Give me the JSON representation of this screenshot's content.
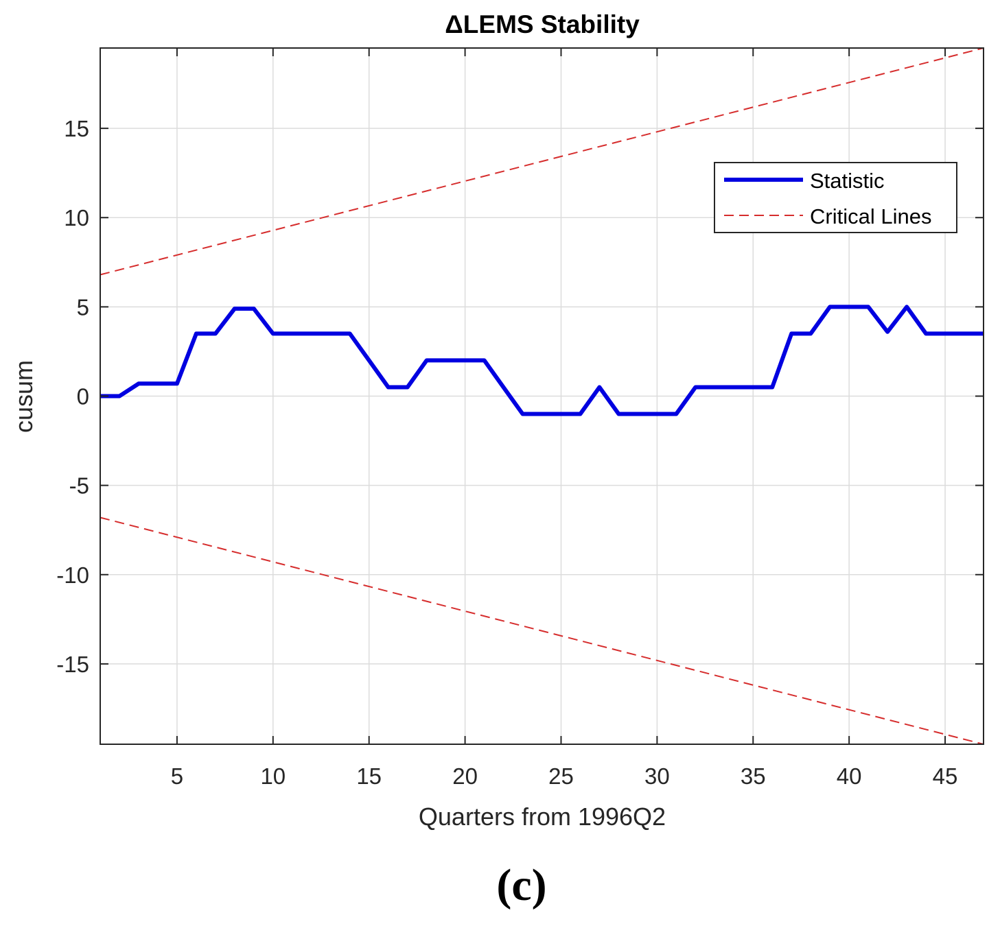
{
  "chart_data": {
    "type": "line",
    "title": "ΔLEMS Stability",
    "xlabel": "Quarters from 1996Q2",
    "ylabel": "cusum",
    "xlim": [
      1,
      47
    ],
    "ylim": [
      -19.5,
      19.5
    ],
    "xticks": [
      5,
      10,
      15,
      20,
      25,
      30,
      35,
      40,
      45
    ],
    "yticks": [
      -15,
      -10,
      -5,
      0,
      5,
      10,
      15
    ],
    "grid": true,
    "legend_position": "top-right",
    "colors": {
      "statistic": "#0000e0",
      "critical": "#d62d2d",
      "grid": "#dcdcdc",
      "axis": "#262626"
    },
    "series": [
      {
        "name": "Statistic",
        "style": "solid",
        "x": [
          1,
          2,
          3,
          4,
          5,
          6,
          7,
          8,
          9,
          10,
          11,
          12,
          13,
          14,
          15,
          16,
          17,
          18,
          19,
          20,
          21,
          22,
          23,
          24,
          25,
          26,
          27,
          28,
          29,
          30,
          31,
          32,
          33,
          34,
          35,
          36,
          37,
          38,
          39,
          40,
          41,
          42,
          43,
          44,
          45,
          46,
          47
        ],
        "values": [
          0,
          0,
          0.7,
          0.7,
          0.7,
          3.5,
          3.5,
          4.9,
          4.9,
          3.5,
          3.5,
          3.5,
          3.5,
          3.5,
          2.0,
          0.5,
          0.5,
          2.0,
          2.0,
          2.0,
          2.0,
          0.5,
          -1.0,
          -1.0,
          -1.0,
          -1.0,
          0.5,
          -1.0,
          -1.0,
          -1.0,
          -1.0,
          0.5,
          0.5,
          0.5,
          0.5,
          0.5,
          3.5,
          3.5,
          5.0,
          5.0,
          5.0,
          3.6,
          5.0,
          3.5,
          3.5,
          3.5,
          3.5
        ]
      },
      {
        "name": "Critical Lines",
        "style": "dashed",
        "upper": {
          "x": [
            1,
            47
          ],
          "values": [
            6.8,
            19.5
          ]
        },
        "lower": {
          "x": [
            1,
            47
          ],
          "values": [
            -6.8,
            -19.5
          ]
        }
      }
    ],
    "caption": "(c)"
  }
}
